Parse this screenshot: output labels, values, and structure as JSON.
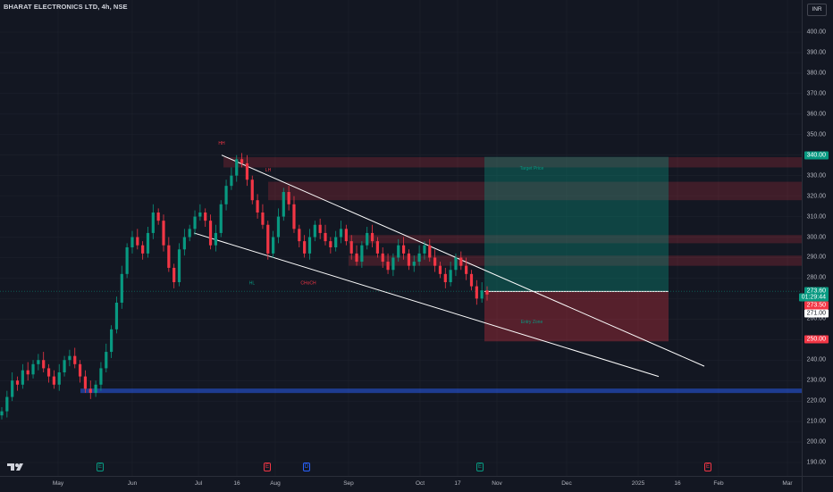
{
  "header": {
    "symbol_title": "BHARAT ELECTRONICS LTD, 4h, NSE",
    "currency": "INR"
  },
  "price_axis": {
    "ticks": [
      "400.00",
      "390.00",
      "380.00",
      "370.00",
      "360.00",
      "350.00",
      "340.00",
      "330.00",
      "320.00",
      "310.00",
      "300.00",
      "290.00",
      "280.00",
      "270.00",
      "260.00",
      "250.00",
      "240.00",
      "230.00",
      "220.00",
      "210.00",
      "200.00",
      "190.00"
    ],
    "tick_values": [
      400,
      390,
      380,
      370,
      360,
      350,
      340,
      330,
      320,
      310,
      300,
      290,
      280,
      270,
      260,
      250,
      240,
      230,
      220,
      210,
      200,
      190
    ],
    "tags": [
      {
        "label": "340.00",
        "value": 340,
        "color": "#089981",
        "text": "#ffffff"
      },
      {
        "label": "273.60",
        "value": 273.6,
        "color": "#089981",
        "text": "#ffffff"
      },
      {
        "label": "01:29:44",
        "value": 270.8,
        "color": "#089981",
        "text": "#ffffff"
      },
      {
        "label": "273.50",
        "value": 266.7,
        "color": "#f23645",
        "text": "#ffffff"
      },
      {
        "label": "271.00",
        "value": 262.9,
        "color": "#ffffff",
        "text": "#131722"
      },
      {
        "label": "250.00",
        "value": 250,
        "color": "#f23645",
        "text": "#ffffff"
      }
    ]
  },
  "time_axis": {
    "ticks": [
      "May",
      "Jun",
      "Jul",
      "16",
      "Aug",
      "Sep",
      "Oct",
      "17",
      "Nov",
      "Dec",
      "2025",
      "16",
      "Feb",
      "Mar"
    ]
  },
  "events": [
    {
      "letter": "E",
      "kind": "earnings-green",
      "date": "May 23"
    },
    {
      "letter": "E",
      "kind": "earnings-red",
      "date": "Jul 25"
    },
    {
      "letter": "D",
      "kind": "dividend",
      "date": "Aug 06"
    },
    {
      "letter": "E",
      "kind": "earnings-green",
      "date": "Oct 26"
    },
    {
      "letter": "E",
      "kind": "earnings-red",
      "date": "Feb 05"
    }
  ],
  "chart_data": {
    "type": "candlestick",
    "symbol": "BHARAT ELECTRONICS LTD",
    "interval": "4h",
    "exchange": "NSE",
    "currency": "INR",
    "ylim": [
      185,
      410
    ],
    "last_price": 273.6,
    "countdown": "01:29:44",
    "colors": {
      "up": "#089981",
      "down": "#f23645",
      "background": "#131722",
      "grid": "#1e222d"
    },
    "key_prices": {
      "take_profit": 340.0,
      "entry": 273.5,
      "stop_loss": 250.0,
      "support": 225.0
    },
    "channel": {
      "upper_start_price": 340,
      "upper_end_price": 237,
      "lower_start_price": 302,
      "lower_end_price": 232
    },
    "zones": [
      {
        "label": "supply-zone-1",
        "top": 339,
        "bottom": 334
      },
      {
        "label": "supply-zone-2",
        "top": 327,
        "bottom": 318
      },
      {
        "label": "supply-zone-3",
        "top": 301,
        "bottom": 297
      },
      {
        "label": "supply-zone-4",
        "top": 291,
        "bottom": 286
      }
    ],
    "annotations": [
      "HH",
      "LH",
      "HL",
      "CHoCH",
      "Target Price",
      "Entry Zone"
    ],
    "candles_close_path": [
      215,
      222,
      230,
      228,
      235,
      233,
      238,
      240,
      236,
      232,
      228,
      234,
      240,
      242,
      238,
      232,
      226,
      224,
      228,
      236,
      244,
      255,
      268,
      282,
      295,
      300,
      296,
      292,
      302,
      312,
      308,
      296,
      285,
      278,
      294,
      300,
      304,
      310,
      312,
      308,
      296,
      302,
      316,
      325,
      330,
      338,
      336,
      328,
      318,
      312,
      306,
      292,
      300,
      310,
      322,
      316,
      304,
      298,
      292,
      300,
      306,
      302,
      298,
      295,
      300,
      304,
      298,
      292,
      288,
      296,
      302,
      298,
      292,
      288,
      284,
      290,
      296,
      292,
      286,
      288,
      292,
      296,
      290,
      286,
      282,
      278,
      284,
      290,
      286,
      282,
      276,
      270,
      274,
      272
    ]
  }
}
